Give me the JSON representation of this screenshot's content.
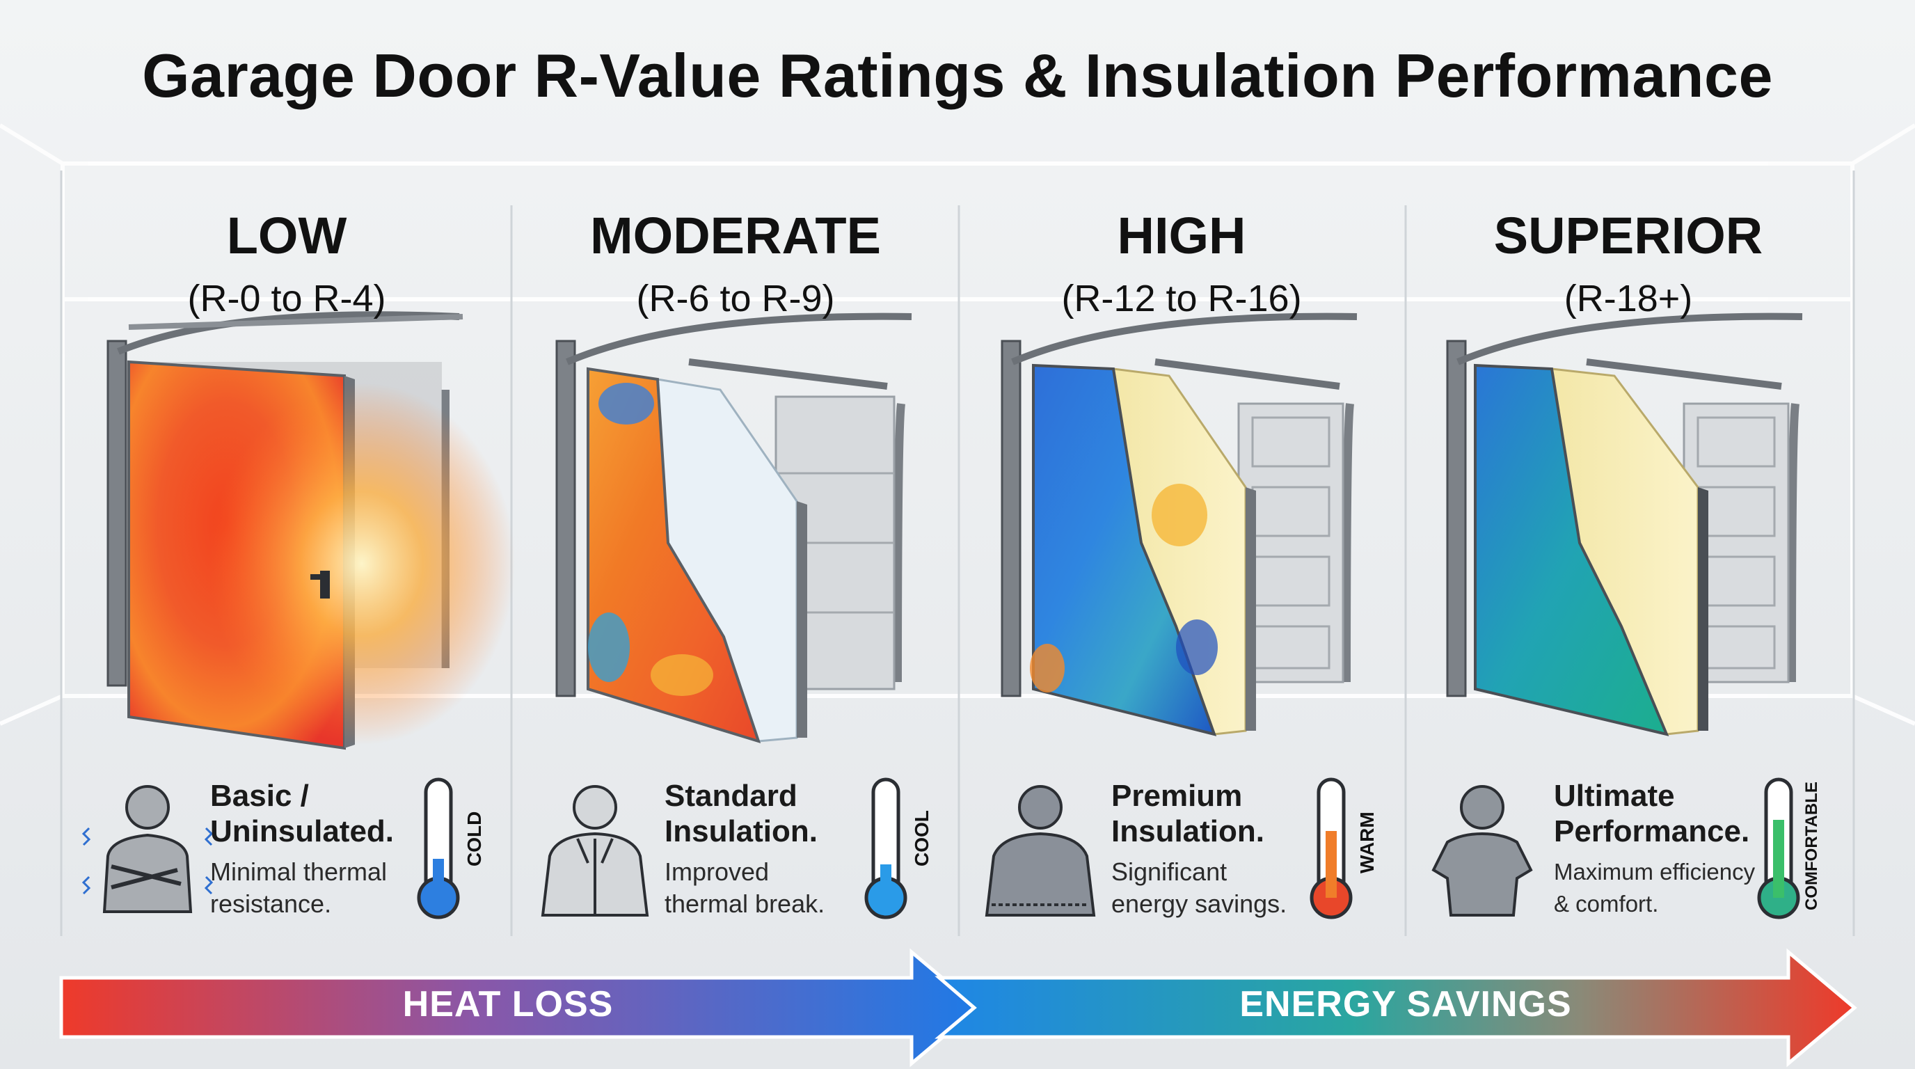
{
  "title": "Garage Door R-Value Ratings & Insulation Performance",
  "columns": [
    {
      "level": "LOW",
      "range": "(R-0 to R-4)",
      "desc_title_line1": "Basic /",
      "desc_title_line2": "Uninsulated.",
      "desc_line1": "Minimal thermal",
      "desc_line2": "resistance.",
      "thermo_label": "COLD",
      "thermo_fill": 0.35,
      "thermo_color": "#2d7fe0",
      "person": "shivering person in t-shirt",
      "door": "thermal-red door"
    },
    {
      "level": "MODERATE",
      "range": "(R-6 to R-9)",
      "desc_title_line1": "Standard",
      "desc_title_line2": "Insulation.",
      "desc_line1": "Improved",
      "desc_line2": "thermal break.",
      "thermo_label": "COOL",
      "thermo_fill": 0.3,
      "thermo_color": "#2a9be8",
      "person": "person in jacket",
      "door": "thermal-orange door"
    },
    {
      "level": "HIGH",
      "range": "(R-12 to R-16)",
      "desc_title_line1": "Premium",
      "desc_title_line2": "Insulation.",
      "desc_line1": "Significant",
      "desc_line2": "energy savings.",
      "thermo_label": "WARM",
      "thermo_fill": 0.6,
      "thermo_color": "#f07d2a",
      "person": "person in sweater",
      "door": "thermal-blue door"
    },
    {
      "level": "SUPERIOR",
      "range": "(R-18+)",
      "desc_title_line1": "Ultimate",
      "desc_title_line2": "Performance.",
      "desc_line1": "Maximum efficiency",
      "desc_line2": "& comfort.",
      "thermo_label": "COMFORTABLE",
      "thermo_fill": 0.7,
      "thermo_color": "#3bbf6a",
      "person": "person in t-shirt",
      "door": "thermal-teal door"
    }
  ],
  "arrows": {
    "left_label": "HEAT LOSS",
    "right_label": "ENERGY SAVINGS"
  },
  "colors": {
    "hot": "#e8362a",
    "warm": "#f08a2a",
    "cool": "#2f7fe0",
    "teal": "#1fa6a0"
  }
}
